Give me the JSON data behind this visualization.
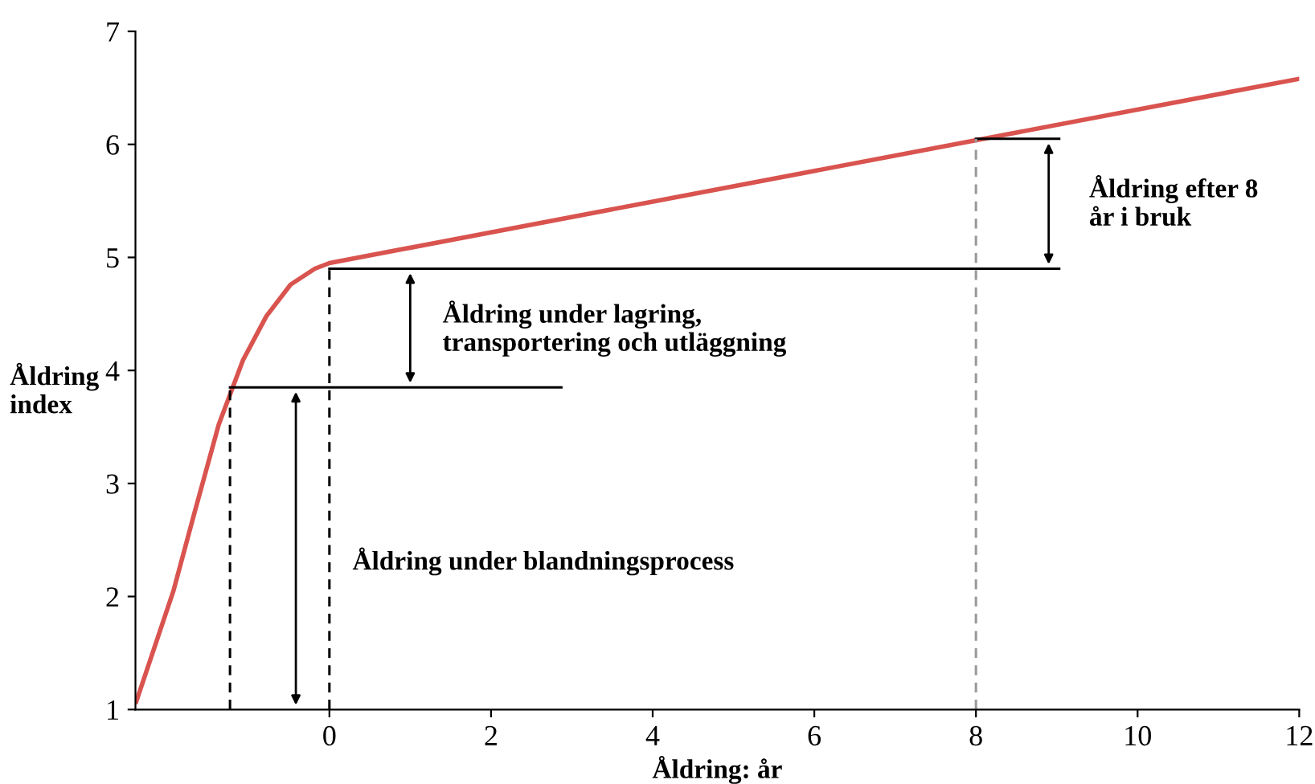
{
  "chart_data": {
    "type": "line",
    "xlabel": "Åldring: år",
    "ylabel": "Åldring\nindex",
    "xlim": [
      -2.4,
      12
    ],
    "ylim": [
      1,
      7
    ],
    "xticks": [
      0,
      2,
      4,
      6,
      8,
      10,
      12
    ],
    "yticks": [
      1,
      2,
      3,
      4,
      5,
      6,
      7
    ],
    "grid": false,
    "legend": false,
    "marker": "none",
    "series": [
      {
        "color": "#d9534f",
        "line_style": "solid",
        "x": [
          -2.39,
          -1.93,
          -1.67,
          -1.37,
          -1.07,
          -0.78,
          -0.48,
          -0.18,
          0,
          12
        ],
        "values": [
          1.07,
          2.05,
          2.74,
          3.52,
          4.09,
          4.48,
          4.76,
          4.9,
          4.95,
          6.58
        ]
      },
      {
        "color": "#000000",
        "line_style": "solid",
        "x": [
          -1.23,
          2.87
        ],
        "values": [
          3.85,
          3.85
        ]
      },
      {
        "color": "#000000",
        "line_style": "solid",
        "x": [
          0,
          9.03
        ],
        "values": [
          4.9,
          4.9
        ]
      },
      {
        "color": "#000000",
        "line_style": "solid",
        "x": [
          8,
          9.03
        ],
        "values": [
          6.05,
          6.05
        ]
      },
      {
        "color": "#000000",
        "line_style": "dashed",
        "x": [
          -1.23,
          -1.23
        ],
        "values": [
          1,
          3.85
        ]
      },
      {
        "color": "#000000",
        "line_style": "dashed",
        "x": [
          0,
          0
        ],
        "values": [
          1,
          4.9
        ]
      },
      {
        "color": "#999999",
        "line_style": "dashed",
        "x": [
          8,
          8
        ],
        "values": [
          1,
          6.05
        ]
      }
    ],
    "annotations": [
      "Åldring under blandningsprocess",
      "Åldring under lagring,\ntransportering och utläggning",
      "Åldring efter 8\når i bruk"
    ]
  }
}
